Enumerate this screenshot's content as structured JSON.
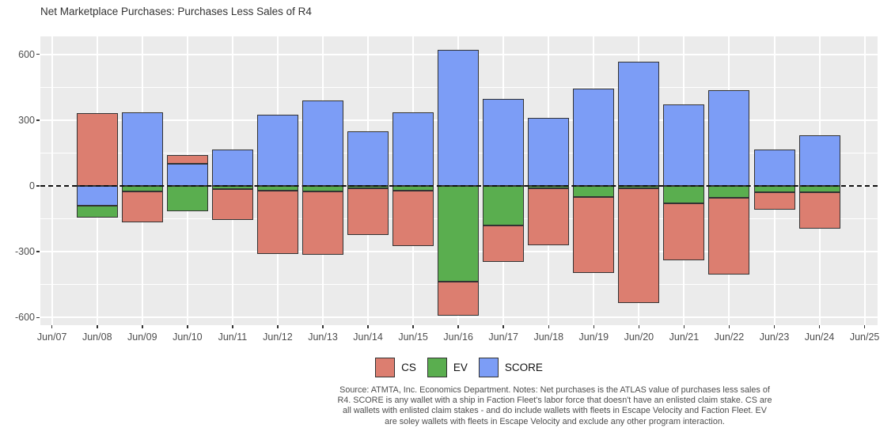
{
  "title": "Net Marketplace Purchases: Purchases Less Sales of R4",
  "chart_data": {
    "type": "bar",
    "stacked": true,
    "categories": [
      "Jun/08",
      "Jun/09",
      "Jun/10",
      "Jun/11",
      "Jun/12",
      "Jun/13",
      "Jun/14",
      "Jun/15",
      "Jun/16",
      "Jun/17",
      "Jun/18",
      "Jun/19",
      "Jun/20",
      "Jun/21",
      "Jun/22",
      "Jun/23",
      "Jun/24"
    ],
    "series": [
      {
        "name": "CS",
        "color": "#DC7E70",
        "values": [
          330,
          -140,
          40,
          -140,
          -290,
          -290,
          -215,
          -255,
          -155,
          -165,
          -260,
          -345,
          -525,
          -260,
          -350,
          -80,
          -165
        ]
      },
      {
        "name": "EV",
        "color": "#5AAE4F",
        "values": [
          -55,
          -25,
          -115,
          -15,
          -20,
          -25,
          -10,
          -20,
          -435,
          -180,
          -10,
          -50,
          -10,
          -80,
          -55,
          -30,
          -30
        ]
      },
      {
        "name": "SCORE",
        "color": "#7C9DF6",
        "values": [
          -90,
          335,
          100,
          165,
          325,
          390,
          250,
          335,
          620,
          395,
          310,
          445,
          565,
          370,
          435,
          165,
          230
        ]
      }
    ],
    "stack_order": [
      "SCORE",
      "EV",
      "CS"
    ],
    "title": "Net Marketplace Purchases: Purchases Less Sales of R4",
    "xlabel": "",
    "ylabel": "",
    "x_ticks": [
      "Jun/07",
      "Jun/08",
      "Jun/09",
      "Jun/10",
      "Jun/11",
      "Jun/12",
      "Jun/13",
      "Jun/14",
      "Jun/15",
      "Jun/16",
      "Jun/17",
      "Jun/18",
      "Jun/19",
      "Jun/20",
      "Jun/21",
      "Jun/22",
      "Jun/23",
      "Jun/24",
      "Jun/25"
    ],
    "yticks": [
      600,
      300,
      0,
      -300,
      -600
    ],
    "minor_yticks": [
      450,
      150,
      -150,
      -450
    ],
    "ylim": [
      -650,
      683
    ],
    "zero_line": "dashed-black",
    "grid": true,
    "panel_background": "#EBEBEB",
    "legend_position": "bottom"
  },
  "legend": {
    "items": [
      {
        "label": "CS",
        "color": "#DC7E70"
      },
      {
        "label": "EV",
        "color": "#5AAE4F"
      },
      {
        "label": "SCORE",
        "color": "#7C9DF6"
      }
    ]
  },
  "caption": {
    "lines": [
      "Source: ATMTA, Inc. Economics Department. Notes: Net purchases is the ATLAS value of purchases less sales of",
      "R4. SCORE is any wallet with a ship in Faction Fleet's labor force that doesn't have an enlisted claim stake. CS are",
      "all wallets with enlisted claim stakes - and do include wallets with fleets in Escape Velocity and Faction Fleet. EV",
      "are soley wallets with fleets in Escape Velocity and exclude any other program interaction."
    ]
  }
}
